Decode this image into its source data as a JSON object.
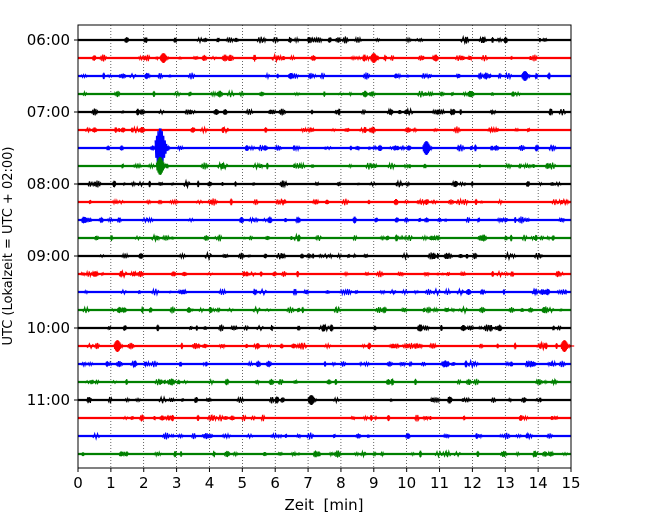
{
  "chart_data": {
    "type": "line",
    "title": "",
    "xlabel": "Zeit  [min]",
    "ylabel": "UTC (Lokalzeit = UTC + 02:00)",
    "xlim": [
      0,
      15
    ],
    "x_ticks": [
      "0",
      "1",
      "2",
      "3",
      "4",
      "5",
      "6",
      "7",
      "8",
      "9",
      "10",
      "11",
      "12",
      "13",
      "14",
      "15"
    ],
    "y_tick_labels": [
      {
        "row": 0,
        "label": "06:00"
      },
      {
        "row": 4,
        "label": "07:00"
      },
      {
        "row": 8,
        "label": "08:00"
      },
      {
        "row": 12,
        "label": "09:00"
      },
      {
        "row": 16,
        "label": "10:00"
      },
      {
        "row": 20,
        "label": "11:00"
      }
    ],
    "grid": "vertical dotted at each minute",
    "trace_colors": [
      "#000000",
      "#ff0000",
      "#0000ff",
      "#008000"
    ],
    "trace_count": 24,
    "minutes_per_trace": 15,
    "events": [
      {
        "row": 6,
        "minute": 2.5,
        "amplitude": 1.0
      },
      {
        "row": 7,
        "minute": 2.5,
        "amplitude": 0.45
      },
      {
        "row": 6,
        "minute": 10.6,
        "amplitude": 0.35
      },
      {
        "row": 20,
        "minute": 7.1,
        "amplitude": 0.25
      },
      {
        "row": 17,
        "minute": 1.2,
        "amplitude": 0.3
      },
      {
        "row": 17,
        "minute": 14.8,
        "amplitude": 0.3
      },
      {
        "row": 1,
        "minute": 2.6,
        "amplitude": 0.25
      },
      {
        "row": 1,
        "minute": 9.0,
        "amplitude": 0.25
      },
      {
        "row": 2,
        "minute": 13.6,
        "amplitude": 0.25
      }
    ]
  }
}
